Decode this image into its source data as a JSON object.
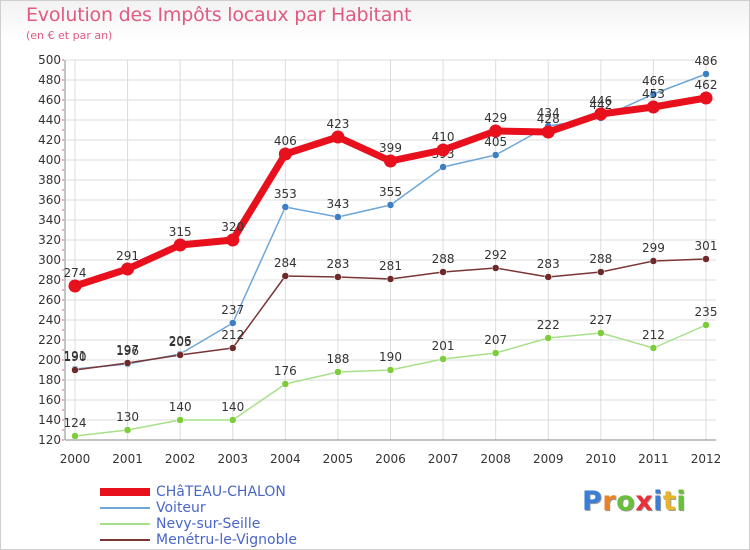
{
  "header": {
    "title": "Evolution des Impôts locaux par Habitant",
    "subtitle": "(en € et par an)"
  },
  "logo": {
    "text": "Proxiti",
    "letter_colors": [
      "#3a7fd5",
      "#e8832a",
      "#6abf3a",
      "#e8303a",
      "#3a7fd5",
      "#e8b52a",
      "#6abf3a"
    ]
  },
  "chart_data": {
    "type": "line",
    "x": [
      "2000",
      "2001",
      "2002",
      "2003",
      "2004",
      "2005",
      "2006",
      "2007",
      "2008",
      "2009",
      "2010",
      "2011",
      "2012"
    ],
    "ylim": [
      120,
      500
    ],
    "yticks": [
      "120",
      "140",
      "160",
      "180",
      "200",
      "220",
      "240",
      "260",
      "280",
      "300",
      "320",
      "340",
      "360",
      "380",
      "400",
      "420",
      "440",
      "460",
      "480",
      "500"
    ],
    "grid": true,
    "legend_position": "bottom-left",
    "series": [
      {
        "name": "Voiteur",
        "color": "#6ea6d8",
        "marker": "#3d7fc4",
        "values": [
          191,
          196,
          206,
          237,
          353,
          343,
          355,
          393,
          405,
          434,
          442,
          466,
          486
        ],
        "labels": [
          "191",
          "196",
          "206",
          "237",
          "353",
          "343",
          "355",
          "393",
          "405",
          "434",
          "442",
          "466",
          "486"
        ]
      },
      {
        "name": "Nevy-sur-Seille",
        "color": "#a8e08a",
        "marker": "#7ccc3c",
        "values": [
          124,
          130,
          140,
          140,
          176,
          188,
          190,
          201,
          207,
          222,
          227,
          212,
          235
        ],
        "labels": [
          "124",
          "130",
          "140",
          "140",
          "176",
          "188",
          "190",
          "201",
          "207",
          "222",
          "227",
          "212",
          "235"
        ]
      },
      {
        "name": "Menétru-le-Vignoble",
        "color": "#7a3535",
        "marker": "#6e2a2a",
        "values": [
          190,
          197,
          205,
          212,
          284,
          283,
          281,
          288,
          292,
          283,
          288,
          299,
          301
        ],
        "labels": [
          "190",
          "197",
          "205",
          "212",
          "284",
          "283",
          "281",
          "288",
          "292",
          "283",
          "288",
          "299",
          "301"
        ]
      },
      {
        "name": "CHâTEAU-CHALON",
        "color": "#e8101c",
        "marker": "#e8101c",
        "values": [
          274,
          291,
          315,
          320,
          406,
          423,
          399,
          410,
          429,
          428,
          446,
          453,
          462
        ],
        "labels": [
          "274",
          "291",
          "315",
          "320",
          "406",
          "423",
          "399",
          "410",
          "429",
          "428",
          "446",
          "453",
          "462"
        ]
      }
    ],
    "legend_order": [
      3,
      0,
      1,
      2
    ]
  }
}
